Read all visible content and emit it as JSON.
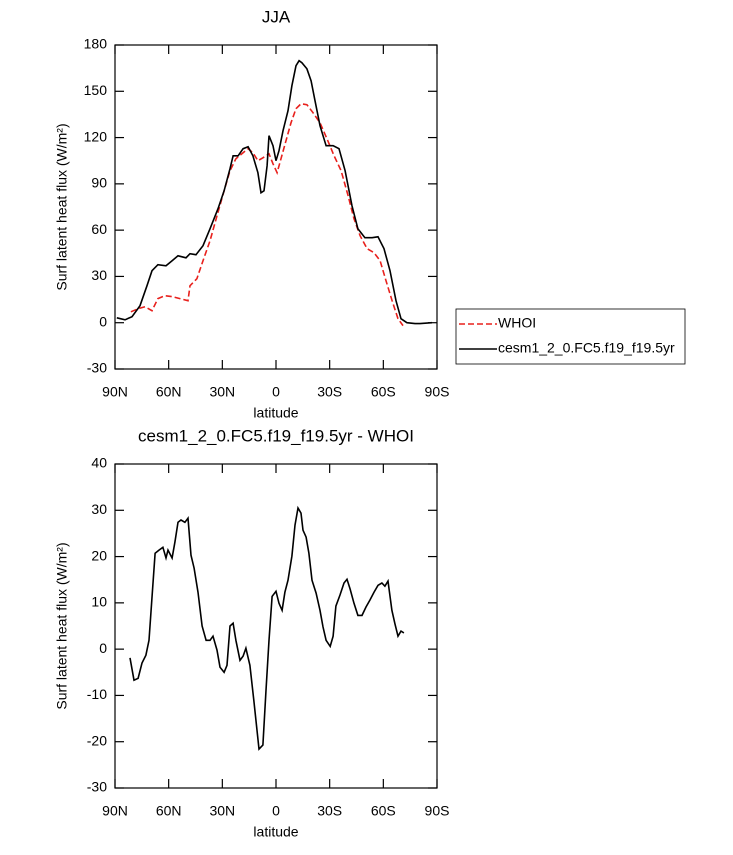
{
  "chart_data": [
    {
      "type": "line",
      "title": "JJA",
      "xlabel": "latitude",
      "ylabel": "Surf latent heat flux (W/m²)",
      "xlim": [
        90,
        -90
      ],
      "xticks": [
        {
          "value": 90,
          "label": "90N"
        },
        {
          "value": 60,
          "label": "60N"
        },
        {
          "value": 30,
          "label": "30N"
        },
        0,
        {
          "value": -30,
          "label": "30S"
        },
        {
          "value": -60,
          "label": "60S"
        },
        {
          "value": -90,
          "label": "90S"
        }
      ],
      "ylim": [
        -30,
        180
      ],
      "yticks": [
        -30,
        0,
        30,
        60,
        90,
        120,
        150,
        180
      ],
      "legend": "right",
      "series": [
        {
          "name": "WHOI",
          "color": "#e8201c",
          "linestyle": "dashed",
          "x": [
            81.1,
            77.1,
            73.2,
            69.3,
            66,
            62.1,
            58.1,
            53.7,
            49.2,
            48.1,
            44.2,
            40.8,
            36.9,
            33,
            29,
            25.7,
            22.4,
            18.4,
            15.6,
            12.9,
            10.1,
            7.3,
            3.9,
            1.7,
            -0.6,
            -2.8,
            -5.6,
            -8.4,
            -11.2,
            -14,
            -17.3,
            -20.7,
            -24.6,
            -28.5,
            -32.5,
            -36.4,
            -40.3,
            -43.6,
            -47,
            -50.9,
            -54.8,
            -58.2,
            -61.5,
            -64.9,
            -68.2,
            -71
          ],
          "values": [
            7.1,
            9.1,
            10.4,
            7.8,
            15.6,
            17.5,
            16.9,
            15.6,
            14.3,
            24,
            28.5,
            40.2,
            53.1,
            69.3,
            85.5,
            98.5,
            106.3,
            110.2,
            112.8,
            110.2,
            105,
            106.9,
            109.5,
            103,
            97.2,
            106.3,
            118,
            129.6,
            138.7,
            141.9,
            141.3,
            136.1,
            129.6,
            119.2,
            108.2,
            98.5,
            82.3,
            67.4,
            56.4,
            48,
            45.4,
            40.2,
            27.2,
            14.3,
            2.6,
            -1.9
          ]
        },
        {
          "name": "cesm1_2_0.FC5.f19_f19.5yr",
          "color": "#000000",
          "linestyle": "solid",
          "x": [
            89,
            84.4,
            80.5,
            76,
            72.1,
            69.3,
            66,
            61.5,
            58.1,
            54.8,
            50.3,
            48.1,
            44.7,
            40.8,
            36.9,
            32.4,
            29,
            25.7,
            24,
            21.2,
            18.4,
            15.6,
            12.9,
            10.1,
            8.4,
            6.7,
            5,
            3.9,
            1.7,
            0,
            -1.7,
            -3.9,
            -6.7,
            -8.9,
            -11.2,
            -12.9,
            -14.5,
            -17.3,
            -19.6,
            -21.8,
            -24.6,
            -28,
            -31.9,
            -35.2,
            -38.6,
            -42.5,
            -45.8,
            -49.7,
            -53.7,
            -57,
            -60.4,
            -63.7,
            -67.1,
            -69.9,
            -73.2,
            -77.7,
            -80.5,
            -87.2
          ],
          "values": [
            3.2,
            1.9,
            3.9,
            11,
            24,
            33.7,
            37.6,
            36.9,
            40.2,
            43.4,
            42.1,
            44.7,
            44.1,
            49.9,
            60.9,
            73.9,
            85.5,
            99.8,
            108.2,
            108.2,
            112.8,
            114.1,
            108.2,
            97.2,
            84.2,
            85.5,
            101.8,
            121.2,
            114.7,
            105,
            111.5,
            124.4,
            137.4,
            153.6,
            166.6,
            169.8,
            168.5,
            164.6,
            156.8,
            143.9,
            127.7,
            114.7,
            114.7,
            112.8,
            98.5,
            75.8,
            60.9,
            55.1,
            55.1,
            55.7,
            48,
            33.7,
            14.3,
            2.6,
            0,
            -0.6,
            -0.6,
            0
          ]
        }
      ]
    },
    {
      "type": "line",
      "title": "cesm1_2_0.FC5.f19_f19.5yr - WHOI",
      "xlabel": "latitude",
      "ylabel": "Surf latent heat flux (W/m²)",
      "xlim": [
        90,
        -90
      ],
      "xticks": [
        {
          "value": 90,
          "label": "90N"
        },
        {
          "value": 60,
          "label": "60N"
        },
        {
          "value": 30,
          "label": "30N"
        },
        0,
        {
          "value": -30,
          "label": "30S"
        },
        {
          "value": -60,
          "label": "60S"
        },
        {
          "value": -90,
          "label": "90S"
        }
      ],
      "ylim": [
        -30,
        40
      ],
      "yticks": [
        -30,
        -20,
        -10,
        0,
        10,
        20,
        30,
        40
      ],
      "color": "#000000",
      "x": [
        81.6,
        79.4,
        77.1,
        74.9,
        72.7,
        71,
        69.3,
        67.6,
        65.4,
        63.2,
        61.5,
        60.4,
        58.1,
        56.5,
        54.8,
        53.1,
        50.9,
        49.2,
        47.5,
        45.8,
        43.6,
        41.3,
        39.1,
        36.9,
        35.2,
        33,
        31.3,
        29,
        27.4,
        25.7,
        24,
        22.4,
        20.1,
        18.4,
        16.8,
        14.6,
        12.4,
        9.5,
        7.3,
        5.6,
        3.9,
        2.2,
        0,
        -1.7,
        -3.4,
        -5,
        -6.7,
        -8.9,
        -10.6,
        -12.3,
        -14,
        -15.1,
        -16.8,
        -18.4,
        -20.1,
        -22.4,
        -24.6,
        -26.3,
        -28,
        -30.3,
        -31.9,
        -33.5,
        -35.8,
        -38,
        -39.7,
        -41.4,
        -43.6,
        -45.8,
        -48.1,
        -50.3,
        -52.5,
        -54.8,
        -57,
        -59.2,
        -60.9,
        -62.6,
        -64.8,
        -66.5,
        -68.2,
        -69.9,
        -71.5
      ],
      "values": [
        -1.9,
        -6.7,
        -6.3,
        -3,
        -1.3,
        1.9,
        11.2,
        20.7,
        21.4,
        22,
        19.7,
        21.4,
        19.7,
        23.1,
        27.4,
        27.9,
        27.4,
        28.3,
        20.3,
        17.5,
        12.3,
        5,
        1.9,
        1.9,
        2.8,
        -0.2,
        -3.9,
        -5,
        -3.5,
        5,
        5.6,
        1.9,
        -2.4,
        -1.5,
        0.2,
        -3.5,
        -11,
        -21.6,
        -20.7,
        -8.9,
        1.9,
        11.4,
        12.5,
        9.9,
        8.4,
        12.3,
        14.9,
        20.1,
        26.8,
        30.5,
        29.4,
        25.7,
        24.2,
        20.7,
        14.9,
        12.1,
        8.4,
        4.8,
        1.9,
        0.6,
        2.8,
        9.3,
        11.7,
        14.3,
        15.1,
        13,
        9.9,
        7.3,
        7.3,
        9.1,
        10.6,
        12.3,
        13.8,
        14.3,
        13.6,
        14.7,
        8.4,
        5.4,
        2.8,
        3.9,
        3.5
      ]
    }
  ]
}
